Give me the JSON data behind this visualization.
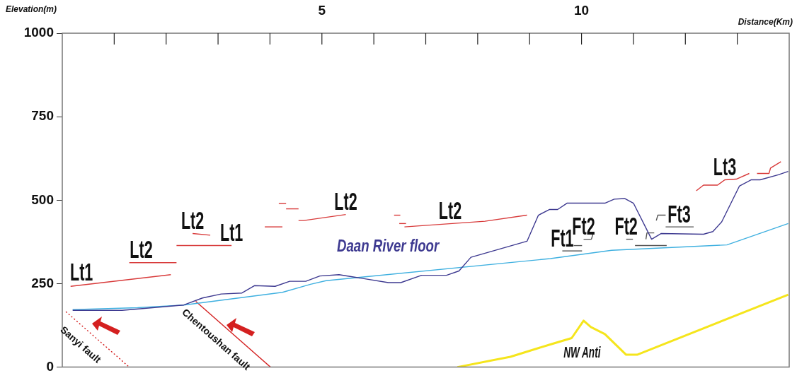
{
  "chart_data": {
    "type": "line",
    "xlabel": "Distance(Km)",
    "ylabel": "Elevation(m)",
    "xlim": [
      0,
      14
    ],
    "xticks": [
      {
        "value": 1,
        "label": null
      },
      {
        "value": 2,
        "label": null
      },
      {
        "value": 3,
        "label": null
      },
      {
        "value": 4,
        "label": null
      },
      5,
      {
        "value": 6,
        "label": null
      },
      {
        "value": 7,
        "label": null
      },
      {
        "value": 8,
        "label": null
      },
      {
        "value": 9,
        "label": null
      },
      10,
      {
        "value": 11,
        "label": null
      },
      {
        "value": 12,
        "label": null
      },
      {
        "value": 13,
        "label": null
      }
    ],
    "ylim": [
      0,
      1000
    ],
    "yticks": [
      0,
      250,
      500,
      750,
      1000
    ],
    "grid": false,
    "legend": false,
    "marker": "none",
    "series": [
      {
        "name": "Daan River floor",
        "color": "#3d3990",
        "x": [
          0.2,
          1.15,
          2.34,
          2.7,
          3.06,
          3.46,
          3.7,
          4.1,
          4.38,
          4.69,
          4.96,
          5.33,
          6.28,
          6.52,
          6.92,
          7.4,
          7.64,
          7.87,
          8.95,
          9.17,
          9.38,
          9.54,
          9.72,
          10.45,
          10.63,
          10.83,
          11.0,
          11.35,
          11.53,
          12.35,
          12.53,
          12.7,
          13.04,
          13.27,
          13.44,
          13.79,
          13.98
        ],
        "values": [
          170,
          170,
          186,
          207,
          219,
          222,
          244,
          242,
          257,
          257,
          273,
          277,
          253,
          253,
          275,
          275,
          288,
          329,
          377,
          455,
          472,
          472,
          491,
          491,
          503,
          505,
          491,
          383,
          400,
          398,
          406,
          435,
          542,
          561,
          561,
          576,
          586
        ]
      },
      {
        "color": "#3fb0e0",
        "x": [
          0.2,
          1.45,
          2.34,
          4.24,
          4.78,
          5.08,
          5.73,
          9.4,
          10.58,
          12.8,
          13.98
        ],
        "values": [
          172,
          178,
          186,
          224,
          248,
          259,
          269,
          325,
          350,
          366,
          430
        ]
      },
      {
        "color": "#f5e51c",
        "x": [
          7.61,
          8.63,
          9.4,
          9.81,
          10.04,
          10.18,
          10.45,
          10.86,
          11.07,
          13.98
        ],
        "values": [
          0,
          31,
          68,
          87,
          139,
          120,
          99,
          37,
          37,
          217
        ]
      },
      {
        "color": "#d83a3a",
        "x": [
          0.16,
          2.09
        ],
        "values": [
          242,
          277
        ]
      },
      {
        "color": "#d83a3a",
        "x": [
          1.29,
          2.2
        ],
        "values": [
          313,
          313
        ]
      },
      {
        "color": "#d83a3a",
        "x": [
          2.2,
          3.26
        ],
        "values": [
          364,
          364
        ]
      },
      {
        "color": "#d83a3a",
        "x": [
          2.51,
          2.85
        ],
        "values": [
          400,
          395
        ]
      },
      {
        "color": "#d83a3a",
        "x": [
          3.9,
          4.24
        ],
        "values": [
          420,
          420
        ]
      },
      {
        "color": "#d83a3a",
        "x": [
          4.17,
          4.31
        ],
        "values": [
          490,
          490
        ]
      },
      {
        "color": "#d83a3a",
        "x": [
          4.31,
          4.55
        ],
        "values": [
          474,
          474
        ]
      },
      {
        "color": "#d83a3a",
        "x": [
          4.55,
          4.65,
          5.46
        ],
        "values": [
          439,
          439,
          457
        ]
      },
      {
        "color": "#d83a3a",
        "x": [
          6.39,
          6.51
        ],
        "values": [
          455,
          455
        ]
      },
      {
        "color": "#d83a3a",
        "x": [
          6.49,
          6.62
        ],
        "values": [
          430,
          430
        ]
      },
      {
        "color": "#d83a3a",
        "x": [
          6.59,
          8.14,
          8.95
        ],
        "values": [
          420,
          437,
          455
        ]
      },
      {
        "color": "#d83a3a",
        "x": [
          12.21,
          12.35,
          12.62,
          12.76,
          12.98,
          13.23
        ],
        "values": [
          528,
          545,
          545,
          561,
          563,
          580
        ]
      },
      {
        "color": "#d83a3a",
        "x": [
          13.38,
          13.61,
          13.64,
          13.84
        ],
        "values": [
          580,
          580,
          596,
          615
        ]
      },
      {
        "color": "#555555",
        "x": [
          9.63,
          10.01
        ],
        "values": [
          348,
          348
        ]
      },
      {
        "color": "#555555",
        "x": [
          9.85,
          10.01
        ],
        "values": [
          364,
          364
        ]
      },
      {
        "color": "#555555",
        "x": [
          10.04,
          10.19,
          10.22
        ],
        "values": [
          383,
          383,
          398
        ]
      },
      {
        "color": "#555555",
        "x": [
          10.86,
          10.99
        ],
        "values": [
          383,
          383
        ]
      },
      {
        "color": "#555555",
        "x": [
          11.03,
          11.64
        ],
        "values": [
          364,
          364
        ]
      },
      {
        "color": "#555555",
        "x": [
          11.24,
          11.26,
          11.4
        ],
        "values": [
          383,
          402,
          402
        ]
      },
      {
        "color": "#555555",
        "x": [
          11.44,
          11.47,
          11.62
        ],
        "values": [
          439,
          455,
          455
        ]
      },
      {
        "color": "#555555",
        "x": [
          11.62,
          12.16
        ],
        "values": [
          420,
          420
        ]
      },
      {
        "name": "Sanyi fault",
        "color": "#d42020",
        "line_style": "dotted",
        "x": [
          0.07,
          1.29
        ],
        "values": [
          166,
          0
        ]
      },
      {
        "name": "Chentoushan fault",
        "color": "#d42020",
        "x": [
          2.57,
          4.01
        ],
        "values": [
          197,
          0
        ]
      }
    ],
    "annotations": [
      {
        "text": "Lt1",
        "x": 0.37,
        "y": 246
      },
      {
        "text": "Lt2",
        "x": 1.52,
        "y": 313
      },
      {
        "text": "Lt2",
        "x": 2.51,
        "y": 400
      },
      {
        "text": "Lt1",
        "x": 3.26,
        "y": 364
      },
      {
        "text": "Lt2",
        "x": 5.46,
        "y": 457
      },
      {
        "text": "Lt2",
        "x": 7.47,
        "y": 430
      },
      {
        "text": "Ft1",
        "x": 9.63,
        "y": 348
      },
      {
        "text": "Ft2",
        "x": 10.04,
        "y": 383
      },
      {
        "text": "Ft2",
        "x": 10.86,
        "y": 383
      },
      {
        "text": "Ft3",
        "x": 11.88,
        "y": 420
      },
      {
        "text": "Lt3",
        "x": 12.76,
        "y": 561
      },
      "NW Anti"
    ]
  }
}
